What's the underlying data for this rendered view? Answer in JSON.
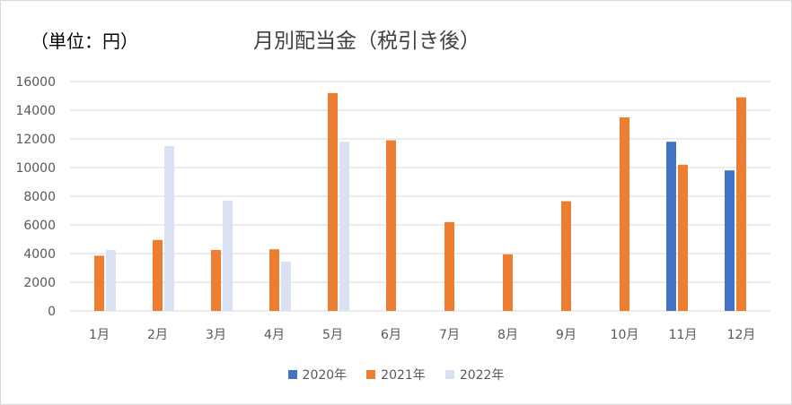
{
  "chart_data": {
    "type": "bar",
    "title": "月別配当金（税引き後）",
    "unit_label": "（単位：円）",
    "xlabel": "",
    "ylabel": "",
    "ylim": [
      0,
      16000
    ],
    "yticks": [
      0,
      2000,
      4000,
      6000,
      8000,
      10000,
      12000,
      14000,
      16000
    ],
    "grid": true,
    "legend_position": "bottom",
    "categories": [
      "1月",
      "2月",
      "3月",
      "4月",
      "5月",
      "6月",
      "7月",
      "8月",
      "9月",
      "10月",
      "11月",
      "12月"
    ],
    "series": [
      {
        "name": "2020年",
        "color": "#4472c4",
        "values": [
          0,
          0,
          0,
          0,
          0,
          0,
          0,
          0,
          0,
          0,
          11800,
          9800
        ]
      },
      {
        "name": "2021年",
        "color": "#ed7d31",
        "values": [
          3850,
          4950,
          4250,
          4300,
          15200,
          11900,
          6200,
          3950,
          7650,
          13500,
          10200,
          14900
        ]
      },
      {
        "name": "2022年",
        "color": "#d9e1f2",
        "values": [
          4250,
          11500,
          7700,
          3450,
          11800,
          0,
          0,
          0,
          0,
          0,
          0,
          0
        ]
      }
    ]
  }
}
